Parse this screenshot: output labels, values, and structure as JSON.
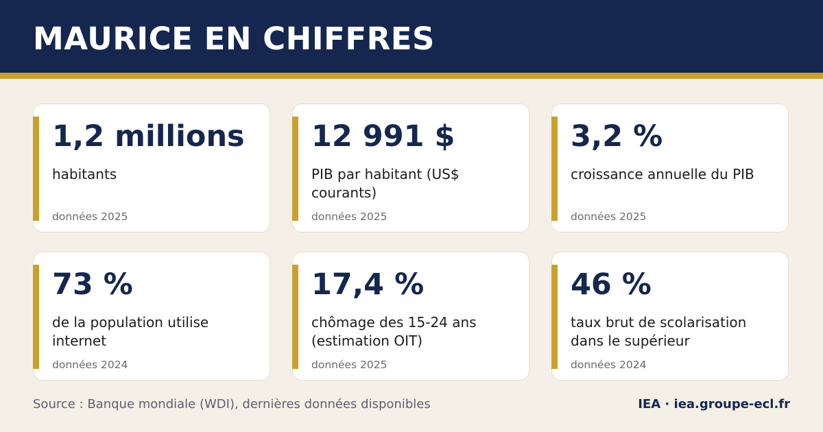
{
  "header": {
    "title": "MAURICE EN CHIFFRES"
  },
  "colors": {
    "navy": "#15274f",
    "gold": "#c9a02c",
    "background": "#f4f0e8",
    "card": "#ffffff",
    "muted_text": "#6a6a6a"
  },
  "stats": [
    {
      "value": "1,2 millions",
      "label": "habitants",
      "year": "données 2025"
    },
    {
      "value": "12 991 $",
      "label": "PIB par habitant (US$ courants)",
      "year": "données 2025"
    },
    {
      "value": "3,2 %",
      "label": "croissance annuelle du PIB",
      "year": "données 2025"
    },
    {
      "value": "73 %",
      "label": "de la population utilise internet",
      "year": "données 2024"
    },
    {
      "value": "17,4 %",
      "label": "chômage des 15-24 ans (estimation OIT)",
      "year": "données 2025"
    },
    {
      "value": "46 %",
      "label": "taux brut de scolarisation dans le supérieur",
      "year": "données 2024"
    }
  ],
  "footer": {
    "source": "Source : Banque mondiale (WDI), dernières données disponibles",
    "brand": "IEA · iea.groupe-ecl.fr"
  }
}
